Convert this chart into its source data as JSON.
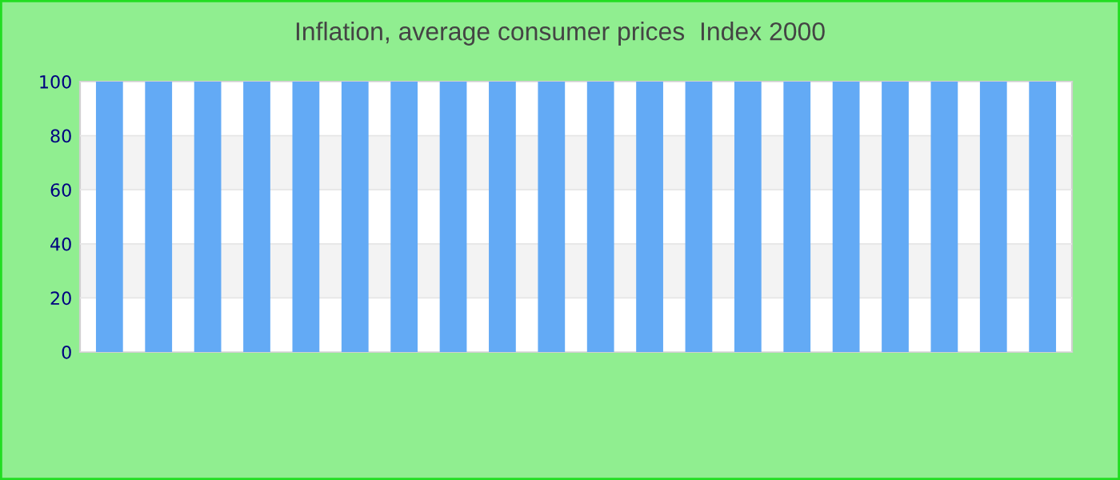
{
  "chart_data": {
    "type": "bar",
    "title": "Inflation, average consumer prices  Index 2000",
    "categories": [
      null,
      null,
      null,
      null,
      null,
      null,
      null,
      null,
      null,
      null,
      null,
      null,
      null,
      null,
      null,
      null,
      null,
      null,
      null,
      null
    ],
    "values": [
      100,
      100,
      100,
      100,
      100,
      100,
      100,
      100,
      100,
      100,
      100,
      100,
      100,
      100,
      100,
      100,
      100,
      100,
      100,
      100
    ],
    "color": "#63aaf5",
    "ylim": [
      0,
      100
    ],
    "yticks": [
      0,
      20,
      40,
      60,
      80,
      100
    ],
    "grid": "y"
  }
}
